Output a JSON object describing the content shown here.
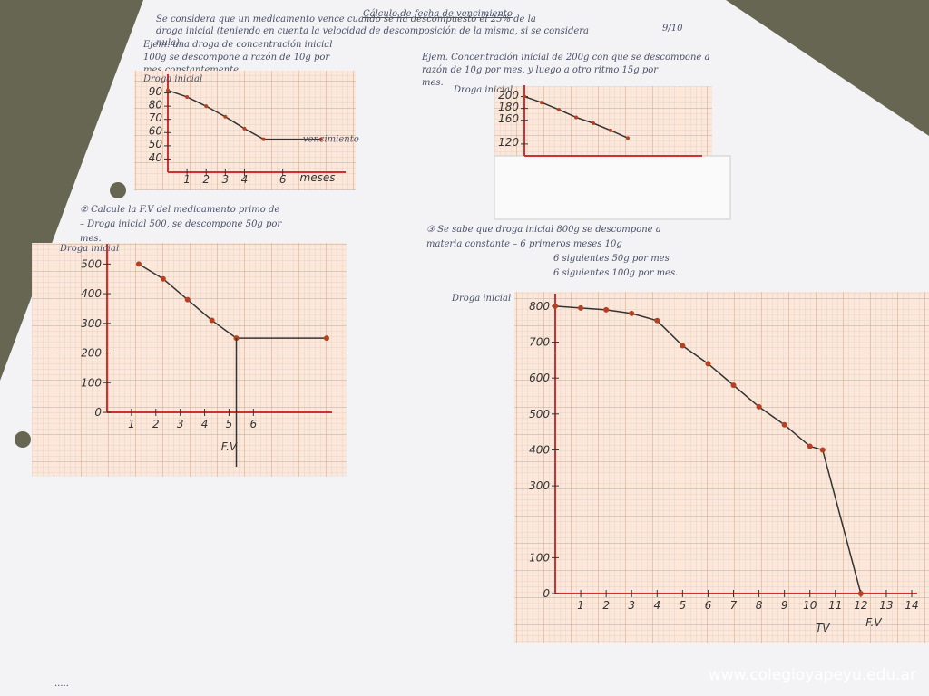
{
  "header": {
    "title": "Cálculo de fecha de vencimiento",
    "grade": "9/10"
  },
  "intro": [
    "Se considera que un medicamento vence cuando se ha descompuesto el 25% de la",
    "droga inicial (teniendo en cuenta la velocidad de descomposición de la misma, si se considera",
    "nula)."
  ],
  "graphs": [
    {
      "text": [
        "Ejem. una droga de concentración inicial",
        "100g se descompone a razón de 10g por",
        "mes constantemente."
      ],
      "y_label": "Droga inicial",
      "x_label": "meses",
      "annotation": "vencimiento",
      "xlim": [
        0,
        9
      ],
      "ylim": [
        30,
        100
      ],
      "xticks": [
        1,
        2,
        3,
        4,
        6
      ],
      "yticks": [
        40,
        50,
        60,
        70,
        80,
        90
      ],
      "x": [
        0,
        1,
        2,
        3,
        4,
        5,
        8
      ],
      "y": [
        92,
        87,
        80,
        72,
        63,
        55,
        55
      ]
    },
    {
      "text": [
        "Ejem. Concentración inicial de 200g con que se descompone a",
        "razón de 10g por mes, y luego a otro ritmo 15g por",
        "mes."
      ],
      "y_label": "Droga inicial",
      "xlim": [
        0,
        10
      ],
      "ylim": [
        100,
        210
      ],
      "xticks": [],
      "yticks": [
        120,
        160,
        180,
        200
      ],
      "x": [
        0,
        1,
        2,
        3,
        4,
        5,
        6
      ],
      "y": [
        200,
        190,
        178,
        165,
        155,
        143,
        130
      ]
    },
    {
      "text": [
        "② Calcule la F.V del medicamento primo de",
        "– Droga inicial 500, se descompone 50g por",
        "mes."
      ],
      "y_label": "Droga inicial",
      "x_label": "F.V",
      "xlim": [
        0,
        9
      ],
      "ylim": [
        0,
        550
      ],
      "xticks": [
        1,
        2,
        3,
        4,
        5,
        6
      ],
      "yticks": [
        0,
        100,
        200,
        300,
        400,
        500
      ],
      "x": [
        1.3,
        2.3,
        3.3,
        4.3,
        5.3,
        9
      ],
      "y": [
        500,
        450,
        380,
        310,
        250,
        250
      ]
    },
    {
      "text": [
        "③ Se sabe que droga inicial 800g se descompone a",
        "materia constante – 6 primeros meses 10g",
        "6 siguientes 50g por mes",
        "6 siguientes 100g por mes."
      ],
      "y_label": "Droga inicial",
      "x_label": "TV",
      "x_label_2": "F.V",
      "xlim": [
        0,
        14
      ],
      "ylim": [
        0,
        820
      ],
      "xticks": [
        1,
        2,
        3,
        4,
        5,
        6,
        7,
        8,
        9,
        10,
        11,
        12,
        13,
        14
      ],
      "yticks": [
        0,
        100,
        300,
        400,
        500,
        600,
        700,
        800
      ],
      "x": [
        0,
        1,
        2,
        3,
        4,
        5,
        6,
        7,
        8,
        9,
        10,
        10.5,
        12
      ],
      "y": [
        800,
        795,
        790,
        780,
        760,
        690,
        640,
        580,
        520,
        470,
        410,
        400,
        0
      ]
    }
  ],
  "watermark": "www.colegioyapeyu.edu.ar"
}
